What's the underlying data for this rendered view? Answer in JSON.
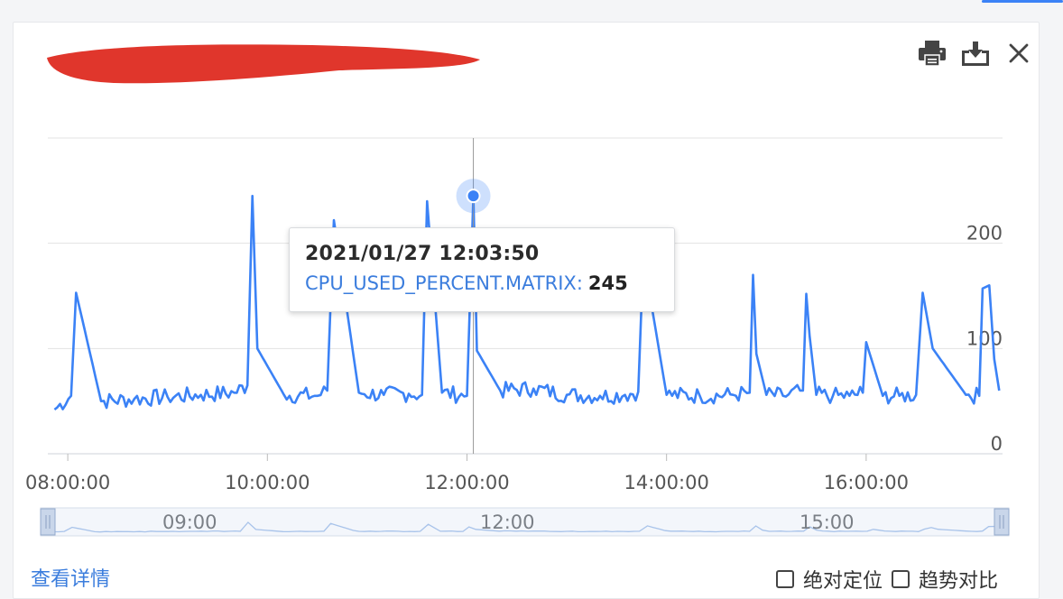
{
  "toolbar": {
    "print_icon": "print-icon",
    "download_icon": "download-icon",
    "close_icon": "close-icon"
  },
  "colors": {
    "series": "#3b82f6",
    "mini_series": "#a8c3ea",
    "grid": "#e3e3e3",
    "axis_text": "#555555",
    "accent": "#3b7ddd",
    "redaction": "#e0362c"
  },
  "tooltip": {
    "time": "2021/01/27 12:03:50",
    "series_name": "CPU_USED_PERCENT.MATRIX:",
    "value": "245"
  },
  "footer": {
    "detail_link": "查看详情",
    "absolute_label": "绝对定位",
    "trend_label": "趋势对比"
  },
  "chart_data": {
    "type": "line",
    "series": [
      {
        "x": [
          "07:52",
          "08:02",
          "08:05",
          "08:20",
          "08:40",
          "09:00",
          "09:20",
          "09:40",
          "09:48",
          "09:51",
          "09:54",
          "10:10",
          "10:30",
          "10:36",
          "10:40",
          "10:55",
          "11:10",
          "11:25",
          "11:33",
          "11:36",
          "11:45",
          "12:00",
          "12:03:50",
          "12:06",
          "12:20",
          "12:40",
          "13:00",
          "13:20",
          "13:35",
          "13:43",
          "13:46",
          "14:00",
          "14:20",
          "14:40",
          "14:50",
          "14:52",
          "14:54",
          "15:00",
          "15:10",
          "15:22",
          "15:24",
          "15:26",
          "15:30",
          "15:40",
          "15:50",
          "15:58",
          "16:00",
          "16:10",
          "16:20",
          "16:30",
          "16:34",
          "16:40",
          "17:00",
          "17:08",
          "17:10",
          "17:14",
          "17:17",
          "17:20"
        ],
        "y": [
          42,
          55,
          153,
          50,
          52,
          54,
          56,
          58,
          65,
          245,
          100,
          56,
          55,
          60,
          222,
          58,
          56,
          57,
          56,
          240,
          58,
          55,
          245,
          98,
          60,
          62,
          56,
          55,
          56,
          59,
          188,
          56,
          55,
          56,
          58,
          170,
          95,
          56,
          55,
          60,
          152,
          112,
          56,
          55,
          55,
          58,
          106,
          55,
          55,
          56,
          153,
          100,
          56,
          55,
          157,
          160,
          90,
          60
        ]
      }
    ],
    "x_ticks": [
      "08:00:00",
      "10:00:00",
      "12:00:00",
      "14:00:00",
      "16:00:00"
    ],
    "y_ticks": [
      "0",
      "100",
      "200"
    ],
    "ylim": [
      0,
      300
    ],
    "grid": true,
    "dataZoom": {
      "labels": [
        "09:00",
        "12:00",
        "15:00"
      ]
    }
  }
}
